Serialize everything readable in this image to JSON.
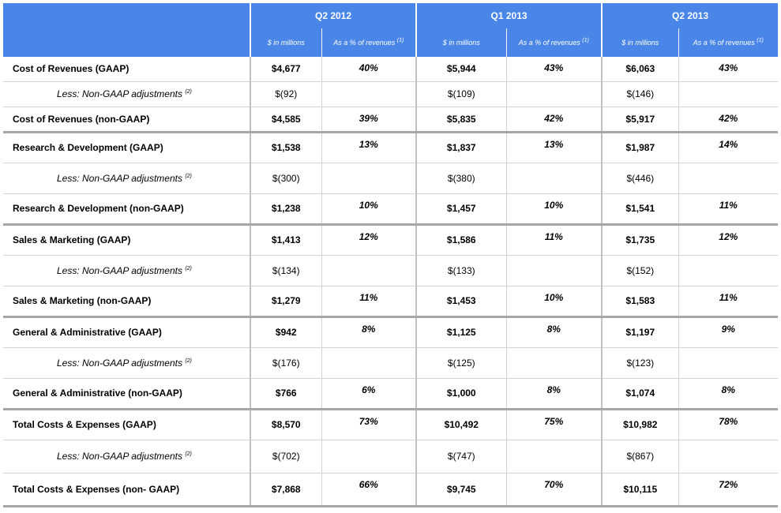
{
  "header": {
    "periods": [
      "Q2 2012",
      "Q1 2013",
      "Q2 2013"
    ],
    "sub_usd": "$ in millions",
    "sub_pct": "As a % of revenues",
    "sub_pct_note": "(1)"
  },
  "rows": [
    {
      "label": "Cost of Revenues (GAAP)",
      "note": "",
      "kind": "total",
      "cells": [
        [
          "$4,677",
          "40%"
        ],
        [
          "$5,944",
          "43%"
        ],
        [
          "$6,063",
          "43%"
        ]
      ]
    },
    {
      "label": "Less: Non-GAAP adjustments",
      "note": "(2)",
      "kind": "adj",
      "cells": [
        [
          "$(92)",
          ""
        ],
        [
          "$(109)",
          ""
        ],
        [
          "$(146)",
          ""
        ]
      ]
    },
    {
      "label": "Cost of Revenues  (non-GAAP)",
      "note": "",
      "kind": "total",
      "cells": [
        [
          "$4,585",
          "39%"
        ],
        [
          "$5,835",
          "42%"
        ],
        [
          "$5,917",
          "42%"
        ]
      ]
    },
    {
      "label": "Research & Development (GAAP)",
      "note": "",
      "kind": "total",
      "cells": [
        [
          "$1,538",
          "13%"
        ],
        [
          "$1,837",
          "13%"
        ],
        [
          "$1,987",
          "14%"
        ]
      ]
    },
    {
      "label": "Less: Non-GAAP adjustments",
      "note": "(2)",
      "kind": "adj",
      "cells": [
        [
          "$(300)",
          ""
        ],
        [
          "$(380)",
          ""
        ],
        [
          "$(446)",
          ""
        ]
      ]
    },
    {
      "label": "Research & Development (non-GAAP)",
      "note": "",
      "kind": "total",
      "cells": [
        [
          "$1,238",
          "10%"
        ],
        [
          "$1,457",
          "10%"
        ],
        [
          "$1,541",
          "11%"
        ]
      ]
    },
    {
      "label": "Sales & Marketing (GAAP)",
      "note": "",
      "kind": "total",
      "cells": [
        [
          "$1,413",
          "12%"
        ],
        [
          "$1,586",
          "11%"
        ],
        [
          "$1,735",
          "12%"
        ]
      ]
    },
    {
      "label": "Less: Non-GAAP adjustments",
      "note": "(2)",
      "kind": "adj",
      "cells": [
        [
          "$(134)",
          ""
        ],
        [
          "$(133)",
          ""
        ],
        [
          "$(152)",
          ""
        ]
      ]
    },
    {
      "label": "Sales & Marketing (non-GAAP)",
      "note": "",
      "kind": "total",
      "cells": [
        [
          "$1,279",
          "11%"
        ],
        [
          "$1,453",
          "10%"
        ],
        [
          "$1,583",
          "11%"
        ]
      ]
    },
    {
      "label": "General & Administrative (GAAP)",
      "note": "",
      "kind": "total",
      "cells": [
        [
          "$942",
          "8%"
        ],
        [
          "$1,125",
          "8%"
        ],
        [
          "$1,197",
          "9%"
        ]
      ]
    },
    {
      "label": "Less: Non-GAAP adjustments",
      "note": "(2)",
      "kind": "adj",
      "cells": [
        [
          "$(176)",
          ""
        ],
        [
          "$(125)",
          ""
        ],
        [
          "$(123)",
          ""
        ]
      ]
    },
    {
      "label": "General & Administrative (non-GAAP)",
      "note": "",
      "kind": "total",
      "cells": [
        [
          "$766",
          "6%"
        ],
        [
          "$1,000",
          "8%"
        ],
        [
          "$1,074",
          "8%"
        ]
      ]
    },
    {
      "label": "Total Costs & Expenses (GAAP)",
      "note": "",
      "kind": "total",
      "cells": [
        [
          "$8,570",
          "73%"
        ],
        [
          "$10,492",
          "75%"
        ],
        [
          "$10,982",
          "78%"
        ]
      ]
    },
    {
      "label": "Less: Non-GAAP adjustments",
      "note": "(2)",
      "kind": "adj",
      "cells": [
        [
          "$(702)",
          ""
        ],
        [
          "$(747)",
          ""
        ],
        [
          "$(867)",
          ""
        ]
      ]
    },
    {
      "label": "Total Costs & Expenses (non- GAAP)",
      "note": "",
      "kind": "total",
      "cells": [
        [
          "$7,868",
          "66%"
        ],
        [
          "$9,745",
          "70%"
        ],
        [
          "$10,115",
          "72%"
        ]
      ]
    }
  ]
}
